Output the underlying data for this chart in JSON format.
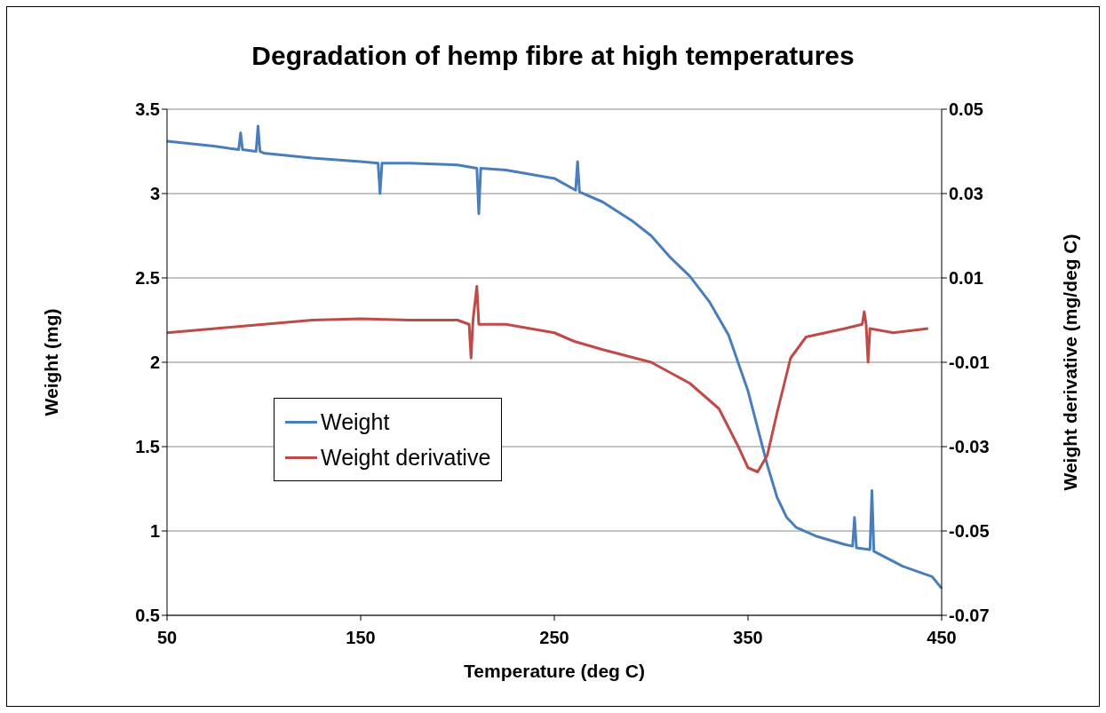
{
  "chart_data": {
    "type": "line",
    "title": "Degradation of hemp fibre at high temperatures",
    "xlabel": "Temperature (deg C)",
    "ylabel": "Weight (mg)",
    "y2label": "Weight derivative (mg/deg C)",
    "xlim": [
      50,
      450
    ],
    "xticks": [
      50,
      150,
      250,
      350,
      450
    ],
    "ylim": [
      0.5,
      3.5
    ],
    "yticks": [
      0.5,
      1,
      1.5,
      2,
      2.5,
      3,
      3.5
    ],
    "y2lim": [
      -0.07,
      0.05
    ],
    "y2ticks": [
      -0.07,
      -0.05,
      -0.03,
      -0.01,
      0.01,
      0.03,
      0.05
    ],
    "grid": "y",
    "legend": "left",
    "marker": "none",
    "line_style": "solid",
    "series": [
      {
        "name": "Weight",
        "color": "#4a7ebb",
        "x": [
          50,
          75,
          87,
          88,
          89,
          96,
          97,
          98,
          100,
          125,
          150,
          159,
          160,
          161,
          175,
          200,
          210,
          211,
          212,
          225,
          250,
          261,
          262,
          263,
          275,
          290,
          300,
          310,
          320,
          330,
          340,
          350,
          355,
          360,
          365,
          370,
          375,
          385,
          400,
          404,
          405,
          406,
          413,
          414,
          415,
          430,
          445,
          450
        ],
        "values": [
          3.31,
          3.28,
          3.26,
          3.36,
          3.26,
          3.25,
          3.4,
          3.25,
          3.24,
          3.21,
          3.19,
          3.18,
          3.0,
          3.18,
          3.18,
          3.17,
          3.15,
          2.88,
          3.15,
          3.14,
          3.09,
          3.02,
          3.19,
          3.01,
          2.95,
          2.84,
          2.75,
          2.62,
          2.51,
          2.36,
          2.16,
          1.83,
          1.61,
          1.39,
          1.2,
          1.08,
          1.02,
          0.97,
          0.92,
          0.91,
          1.08,
          0.9,
          0.89,
          1.24,
          0.88,
          0.79,
          0.73,
          0.66
        ]
      },
      {
        "name": "Weight derivative",
        "color": "#be4b48",
        "axis": "y2",
        "x": [
          50,
          75,
          100,
          125,
          150,
          175,
          200,
          206,
          207,
          208,
          210,
          211,
          212,
          225,
          250,
          260,
          275,
          300,
          320,
          335,
          345,
          350,
          355,
          360,
          365,
          372,
          380,
          400,
          409,
          410,
          411,
          412,
          413,
          425,
          443
        ],
        "values": [
          -0.003,
          -0.002,
          -0.001,
          0,
          0.0003,
          0,
          0,
          -0.001,
          -0.009,
          0,
          0.008,
          -0.001,
          -0.001,
          -0.001,
          -0.003,
          -0.005,
          -0.007,
          -0.01,
          -0.015,
          -0.021,
          -0.03,
          -0.035,
          -0.036,
          -0.032,
          -0.022,
          -0.009,
          -0.004,
          -0.002,
          -0.001,
          0.002,
          -0.001,
          -0.01,
          -0.002,
          -0.003,
          -0.002
        ]
      }
    ]
  }
}
